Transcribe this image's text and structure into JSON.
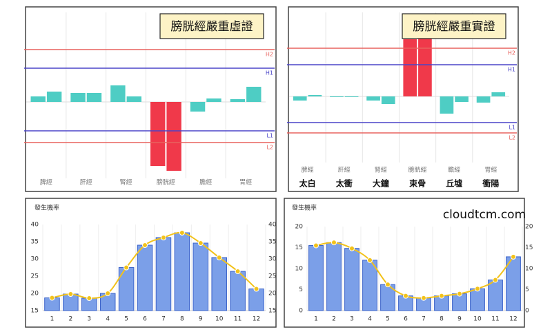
{
  "chart_data": [
    {
      "type": "bar-pair",
      "title": "膀胱經嚴重虛證",
      "categories": [
        "脾經",
        "肝經",
        "腎經",
        "膀胱經",
        "膽經",
        "胃經"
      ],
      "values": [
        [
          8,
          15
        ],
        [
          13,
          13
        ],
        [
          24,
          8
        ],
        [
          -93,
          -100
        ],
        [
          -14,
          5
        ],
        [
          4,
          22
        ]
      ],
      "color": "#4ecdc4",
      "alert_color": "#f0394a",
      "ylim": [
        -107,
        130
      ],
      "reference_lines": [
        {
          "label": "H2",
          "value": 76,
          "color": "#e8625e"
        },
        {
          "label": "H1",
          "value": 49,
          "color": "#4a44c8"
        },
        {
          "label": "L1",
          "value": -42,
          "color": "#4a44c8"
        },
        {
          "label": "L2",
          "value": -59,
          "color": "#e8625e"
        }
      ]
    },
    {
      "type": "bar-pair",
      "title": "膀胱經嚴重實證",
      "categories": [
        "脾經",
        "肝經",
        "腎經",
        "膀胱經",
        "膽經",
        "胃經"
      ],
      "points": [
        "太白",
        "太衝",
        "大鐘",
        "束骨",
        "丘墟",
        "衝陽"
      ],
      "values": [
        [
          -6,
          2
        ],
        [
          -1,
          -1
        ],
        [
          -6,
          -11
        ],
        [
          83,
          95
        ],
        [
          -25,
          -8
        ],
        [
          -9,
          6
        ]
      ],
      "color": "#4ecdc4",
      "alert_color": "#f0394a",
      "ylim": [
        -92,
        122
      ],
      "reference_lines": [
        {
          "label": "H2",
          "value": 70,
          "color": "#e8625e"
        },
        {
          "label": "H1",
          "value": 46,
          "color": "#4a44c8"
        },
        {
          "label": "L1",
          "value": -38,
          "color": "#4a44c8"
        },
        {
          "label": "L2",
          "value": -53,
          "color": "#e8625e"
        }
      ]
    },
    {
      "type": "bar-line",
      "title": "發生機率",
      "categories": [
        "1",
        "2",
        "3",
        "4",
        "5",
        "6",
        "7",
        "8",
        "9",
        "10",
        "11",
        "12"
      ],
      "values": [
        18.7,
        19.8,
        18.6,
        20,
        27.5,
        34,
        36.2,
        37.6,
        34.6,
        30.4,
        26.4,
        21.3
      ],
      "color": "#7b9fe8",
      "line_color": "#f2c21b",
      "ylim": [
        15,
        40
      ],
      "yticks": [
        15,
        20,
        25,
        30,
        35,
        40
      ],
      "y2lim": [
        15,
        40
      ],
      "y2ticks": [
        15,
        20,
        25,
        30,
        35,
        40
      ]
    },
    {
      "type": "bar-line",
      "title": "發生機率",
      "watermark": "cloudtcm.com",
      "categories": [
        "1",
        "2",
        "3",
        "4",
        "5",
        "6",
        "7",
        "8",
        "9",
        "10",
        "11",
        "12"
      ],
      "values": [
        15.5,
        16.2,
        14.8,
        12,
        6.2,
        3.5,
        3,
        3.5,
        4,
        5.2,
        7.3,
        12.8
      ],
      "color": "#7b9fe8",
      "line_color": "#f2c21b",
      "ylim": [
        0,
        20
      ],
      "yticks": [
        0,
        5,
        10,
        15,
        20
      ],
      "y2lim": [
        0,
        20
      ],
      "y2ticks": [
        0,
        5,
        10,
        15,
        20
      ]
    }
  ]
}
